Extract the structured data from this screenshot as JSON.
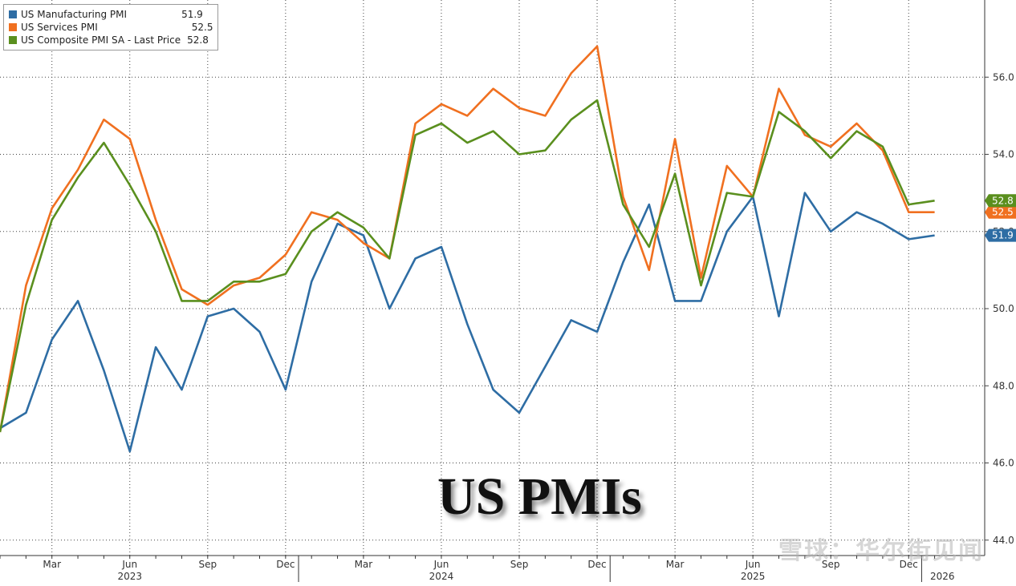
{
  "chart_data": {
    "type": "line",
    "title": "US PMIs",
    "x": [
      "2023-01",
      "2023-02",
      "2023-03",
      "2023-04",
      "2023-05",
      "2023-06",
      "2023-07",
      "2023-08",
      "2023-09",
      "2023-10",
      "2023-11",
      "2023-12",
      "2024-01",
      "2024-02",
      "2024-03",
      "2024-04",
      "2024-05",
      "2024-06",
      "2024-07",
      "2024-08",
      "2024-09",
      "2024-10",
      "2024-11",
      "2024-12",
      "2025-01",
      "2025-02",
      "2025-03",
      "2025-04",
      "2025-05",
      "2025-06",
      "2025-07",
      "2025-08",
      "2025-09",
      "2025-10",
      "2025-11",
      "2025-12",
      "2026-01"
    ],
    "series": [
      {
        "name": "US Manufacturing PMI",
        "last_value": "51.9",
        "color": "#2e6da4",
        "values": [
          46.9,
          47.3,
          49.2,
          50.2,
          48.4,
          46.3,
          49.0,
          47.9,
          49.8,
          50.0,
          49.4,
          47.9,
          50.7,
          52.2,
          51.9,
          50.0,
          51.3,
          51.6,
          49.6,
          47.9,
          47.3,
          48.5,
          49.7,
          49.4,
          51.2,
          52.7,
          50.2,
          50.2,
          52.0,
          52.9,
          49.8,
          53.0,
          52.0,
          52.5,
          52.2,
          51.8,
          51.9
        ]
      },
      {
        "name": "US Services PMI",
        "last_value": "52.5",
        "color": "#f07020",
        "values": [
          46.8,
          50.6,
          52.6,
          53.6,
          54.9,
          54.4,
          52.3,
          50.5,
          50.1,
          50.6,
          50.8,
          51.4,
          52.5,
          52.3,
          51.7,
          51.3,
          54.8,
          55.3,
          55.0,
          55.7,
          55.2,
          55.0,
          56.1,
          56.8,
          52.9,
          51.0,
          54.4,
          50.8,
          53.7,
          52.9,
          55.7,
          54.5,
          54.2,
          54.8,
          54.1,
          52.5,
          52.5
        ]
      },
      {
        "name": "US Composite PMI SA - Last Price",
        "last_value": "52.8",
        "color": "#5a8f1e",
        "values": [
          46.8,
          50.1,
          52.3,
          53.4,
          54.3,
          53.2,
          52.0,
          50.2,
          50.2,
          50.7,
          50.7,
          50.9,
          52.0,
          52.5,
          52.1,
          51.3,
          54.5,
          54.8,
          54.3,
          54.6,
          54.0,
          54.1,
          54.9,
          55.4,
          52.7,
          51.6,
          53.5,
          50.6,
          53.0,
          52.9,
          55.1,
          54.6,
          53.9,
          54.6,
          54.2,
          52.7,
          52.8
        ]
      }
    ],
    "y_ticks": [
      "44.0",
      "46.0",
      "48.0",
      "50.0",
      "52.0",
      "54.0",
      "56.0"
    ],
    "ylim": [
      43.6,
      58.0
    ],
    "x_tick_labels": [
      {
        "label": "Mar",
        "idx": 2
      },
      {
        "label": "Jun",
        "idx": 5
      },
      {
        "label": "Sep",
        "idx": 8
      },
      {
        "label": "Dec",
        "idx": 11
      },
      {
        "label": "Mar",
        "idx": 14
      },
      {
        "label": "Jun",
        "idx": 17
      },
      {
        "label": "Sep",
        "idx": 20
      },
      {
        "label": "Dec",
        "idx": 23
      },
      {
        "label": "Mar",
        "idx": 26
      },
      {
        "label": "Jun",
        "idx": 29
      },
      {
        "label": "Sep",
        "idx": 32
      },
      {
        "label": "Dec",
        "idx": 35
      }
    ],
    "year_labels": [
      {
        "label": "2023",
        "idx": 5
      },
      {
        "label": "2024",
        "idx": 17
      },
      {
        "label": "2025",
        "idx": 29
      },
      {
        "label": "2026",
        "idx": 36.3
      }
    ],
    "year_boundaries": [
      11.5,
      23.5,
      35.5
    ],
    "grid": true,
    "legend_position": "top-left"
  },
  "watermark": "雪球：华尔街见闻"
}
